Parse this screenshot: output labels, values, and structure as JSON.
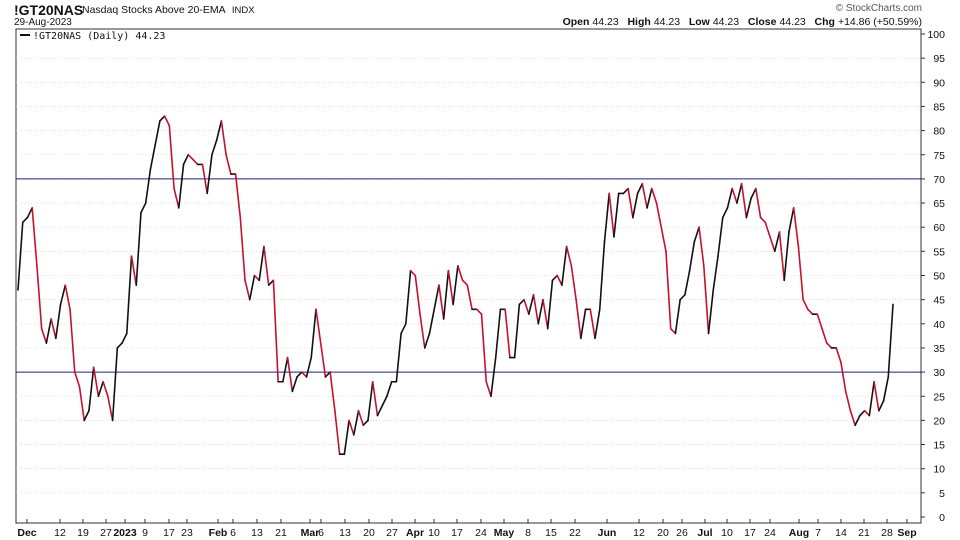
{
  "header": {
    "symbol": "!GT20NAS",
    "description": "Nasdaq Stocks Above 20-EMA",
    "exchange": "INDX",
    "date": "29-Aug-2023",
    "copyright": "© StockCharts.com",
    "open_label": "Open",
    "open_value": "44.23",
    "high_label": "High",
    "high_value": "44.23",
    "low_label": "Low",
    "low_value": "44.23",
    "close_label": "Close",
    "close_value": "44.23",
    "chg_label": "Chg",
    "chg_value": "+14.86 (+50.59%)",
    "chg_icon": "up-arrow-icon"
  },
  "legend": {
    "text": "!GT20NAS (Daily) 44.23"
  },
  "colors": {
    "up": "#111111",
    "down": "#c8102e",
    "refline": "#1a237e",
    "grid": "#c8c8c8"
  },
  "chart_data": {
    "type": "line",
    "series": [
      {
        "name": "!GT20NAS (Daily)",
        "values": [
          47,
          61,
          62,
          64,
          52,
          39,
          36,
          41,
          37,
          44,
          48,
          43,
          30,
          27,
          20,
          22,
          31,
          25,
          28,
          25,
          20,
          35,
          36,
          38,
          54,
          48,
          63,
          65,
          72,
          77,
          82,
          83,
          81,
          68,
          64,
          73,
          75,
          74,
          73,
          73,
          67,
          75,
          78,
          82,
          75,
          71,
          71,
          62,
          49,
          45,
          50,
          49,
          56,
          48,
          49,
          28,
          28,
          33,
          26,
          29,
          30,
          29,
          33,
          43,
          36,
          29,
          30,
          22,
          13,
          13,
          20,
          17,
          22,
          19,
          20,
          28,
          21,
          23,
          25,
          28,
          28,
          38,
          40,
          51,
          50,
          42,
          35,
          38,
          43,
          48,
          41,
          51,
          44,
          52,
          49,
          48,
          43,
          43,
          42,
          28,
          25,
          33,
          43,
          43,
          33,
          33,
          44,
          45,
          42,
          46,
          40,
          45,
          39,
          49,
          50,
          48,
          56,
          52,
          45,
          37,
          43,
          43,
          37,
          43,
          57,
          67,
          58,
          67,
          67,
          68,
          62,
          67,
          69,
          64,
          68,
          65,
          60,
          55,
          39,
          38,
          45,
          46,
          51,
          57,
          60,
          52,
          38,
          47,
          54,
          62,
          64,
          68,
          65,
          69,
          62,
          66,
          68,
          62,
          61,
          58,
          55,
          59,
          49,
          59,
          64,
          56,
          45,
          43,
          42,
          42,
          39,
          36,
          35,
          35,
          32,
          26,
          22,
          19,
          21,
          22,
          21,
          28,
          22,
          24,
          29,
          44
        ]
      }
    ],
    "x_tick_labels": [
      "Dec",
      "12",
      "19",
      "27",
      "2023",
      "9",
      "17",
      "23",
      "Feb",
      "6",
      "13",
      "21",
      "Mar",
      "6",
      "13",
      "20",
      "27",
      "Apr",
      "10",
      "17",
      "24",
      "May",
      "8",
      "15",
      "22",
      "Jun",
      "12",
      "20",
      "26",
      "Jul",
      "10",
      "17",
      "24",
      "Aug",
      "7",
      "14",
      "21",
      "28",
      "Sep"
    ],
    "y_tick_labels": [
      "100",
      "95",
      "90",
      "85",
      "80",
      "75",
      "70",
      "65",
      "60",
      "55",
      "50",
      "45",
      "40",
      "35",
      "30",
      "25",
      "20",
      "15",
      "10",
      "5",
      "0"
    ],
    "ylim": [
      0,
      100
    ],
    "reference_lines": [
      70,
      30
    ],
    "title": "",
    "xlabel": "",
    "ylabel": ""
  }
}
